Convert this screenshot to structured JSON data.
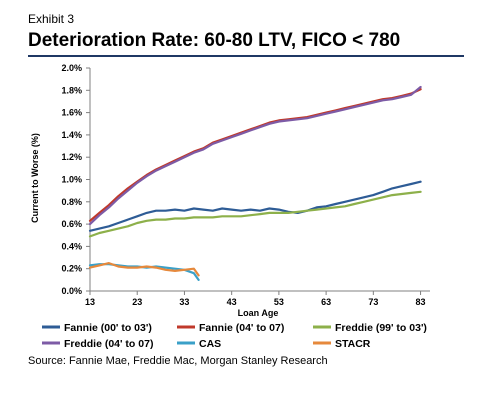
{
  "header": {
    "exhibit": "Exhibit 3",
    "title": "Deterioration Rate: 60-80 LTV, FICO < 780",
    "source": "Source: Fannie Mae, Freddie Mac, Morgan Stanley Research"
  },
  "colors": {
    "rule": "#1f3864",
    "axis": "#808080"
  },
  "chart_data": {
    "type": "line",
    "xlabel": "Loan Age",
    "ylabel": "Current to Worse (%)",
    "xlim": [
      13,
      85
    ],
    "ylim": [
      0,
      2.0
    ],
    "xticks": [
      13,
      23,
      33,
      43,
      53,
      63,
      73,
      83
    ],
    "xtick_labels": [
      "13",
      "23",
      "33",
      "43",
      "53",
      "63",
      "73",
      "83"
    ],
    "yticks": [
      0,
      0.2,
      0.4,
      0.6,
      0.8,
      1.0,
      1.2,
      1.4,
      1.6,
      1.8,
      2.0
    ],
    "ytick_labels": [
      "0.0%",
      "0.2%",
      "0.4%",
      "0.6%",
      "0.8%",
      "1.0%",
      "1.2%",
      "1.4%",
      "1.6%",
      "1.8%",
      "2.0%"
    ],
    "grid": false,
    "legend_position": "bottom",
    "series": [
      {
        "name": "Fannie (00' to 03')",
        "color": "#2e5c96",
        "x": [
          13,
          15,
          17,
          19,
          21,
          23,
          25,
          27,
          29,
          31,
          33,
          35,
          37,
          39,
          41,
          43,
          45,
          47,
          49,
          51,
          53,
          55,
          57,
          59,
          61,
          63,
          65,
          67,
          69,
          71,
          73,
          75,
          77,
          79,
          81,
          83
        ],
        "y": [
          0.54,
          0.56,
          0.58,
          0.61,
          0.64,
          0.67,
          0.7,
          0.72,
          0.72,
          0.73,
          0.72,
          0.74,
          0.73,
          0.72,
          0.74,
          0.73,
          0.72,
          0.73,
          0.72,
          0.74,
          0.73,
          0.71,
          0.7,
          0.72,
          0.75,
          0.76,
          0.78,
          0.8,
          0.82,
          0.84,
          0.86,
          0.89,
          0.92,
          0.94,
          0.96,
          0.98
        ]
      },
      {
        "name": "Fannie (04' to 07)",
        "color": "#c0392b",
        "x": [
          13,
          15,
          17,
          19,
          21,
          23,
          25,
          27,
          29,
          31,
          33,
          35,
          37,
          39,
          41,
          43,
          45,
          47,
          49,
          51,
          53,
          55,
          57,
          59,
          61,
          63,
          65,
          67,
          69,
          71,
          73,
          75,
          77,
          79,
          81,
          83
        ],
        "y": [
          0.63,
          0.7,
          0.77,
          0.85,
          0.92,
          0.98,
          1.04,
          1.09,
          1.13,
          1.17,
          1.21,
          1.25,
          1.28,
          1.33,
          1.36,
          1.39,
          1.42,
          1.45,
          1.48,
          1.51,
          1.53,
          1.54,
          1.55,
          1.56,
          1.58,
          1.6,
          1.62,
          1.64,
          1.66,
          1.68,
          1.7,
          1.72,
          1.73,
          1.75,
          1.77,
          1.81
        ]
      },
      {
        "name": "Freddie (99' to 03')",
        "color": "#8db04a",
        "x": [
          13,
          15,
          17,
          19,
          21,
          23,
          25,
          27,
          29,
          31,
          33,
          35,
          37,
          39,
          41,
          43,
          45,
          47,
          49,
          51,
          53,
          55,
          57,
          59,
          61,
          63,
          65,
          67,
          69,
          71,
          73,
          75,
          77,
          79,
          81,
          83
        ],
        "y": [
          0.49,
          0.52,
          0.54,
          0.56,
          0.58,
          0.61,
          0.63,
          0.64,
          0.64,
          0.65,
          0.65,
          0.66,
          0.66,
          0.66,
          0.67,
          0.67,
          0.67,
          0.68,
          0.69,
          0.7,
          0.7,
          0.7,
          0.71,
          0.72,
          0.73,
          0.74,
          0.75,
          0.76,
          0.78,
          0.8,
          0.82,
          0.84,
          0.86,
          0.87,
          0.88,
          0.89
        ]
      },
      {
        "name": "Freddie (04' to 07)",
        "color": "#7d5ba6",
        "x": [
          13,
          15,
          17,
          19,
          21,
          23,
          25,
          27,
          29,
          31,
          33,
          35,
          37,
          39,
          41,
          43,
          45,
          47,
          49,
          51,
          53,
          55,
          57,
          59,
          61,
          63,
          65,
          67,
          69,
          71,
          73,
          75,
          77,
          79,
          81,
          83
        ],
        "y": [
          0.6,
          0.68,
          0.75,
          0.83,
          0.9,
          0.97,
          1.03,
          1.08,
          1.12,
          1.16,
          1.2,
          1.24,
          1.27,
          1.32,
          1.35,
          1.38,
          1.41,
          1.44,
          1.47,
          1.5,
          1.52,
          1.53,
          1.54,
          1.55,
          1.57,
          1.59,
          1.61,
          1.63,
          1.65,
          1.67,
          1.69,
          1.71,
          1.72,
          1.74,
          1.76,
          1.83
        ]
      },
      {
        "name": "CAS",
        "color": "#3aa0c8",
        "x": [
          13,
          15,
          17,
          19,
          21,
          23,
          25,
          27,
          29,
          31,
          33,
          35,
          36
        ],
        "y": [
          0.23,
          0.24,
          0.24,
          0.23,
          0.22,
          0.22,
          0.21,
          0.22,
          0.21,
          0.2,
          0.19,
          0.16,
          0.1
        ]
      },
      {
        "name": "STACR",
        "color": "#e6893c",
        "x": [
          13,
          15,
          17,
          19,
          21,
          23,
          25,
          27,
          29,
          31,
          33,
          35,
          36
        ],
        "y": [
          0.21,
          0.23,
          0.25,
          0.22,
          0.21,
          0.21,
          0.22,
          0.21,
          0.19,
          0.18,
          0.19,
          0.2,
          0.14
        ]
      }
    ]
  }
}
